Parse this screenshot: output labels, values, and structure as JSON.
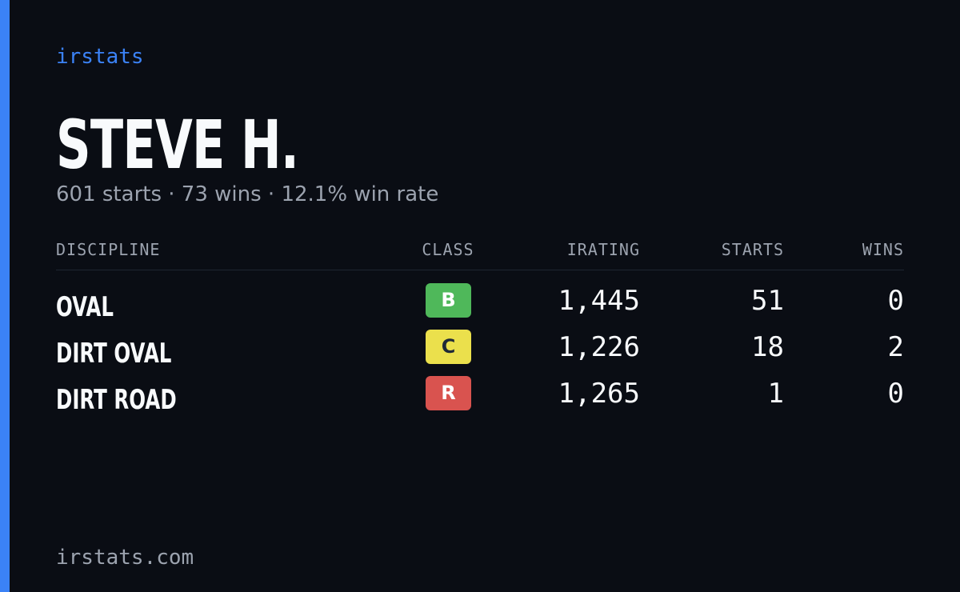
{
  "brand": "irstats",
  "profile": {
    "name": "STEVE H.",
    "summary": "601 starts · 73 wins · 12.1% win rate"
  },
  "table": {
    "headers": [
      "DISCIPLINE",
      "CLASS",
      "IRATING",
      "STARTS",
      "WINS"
    ],
    "rows": [
      {
        "discipline": "OVAL",
        "class": "B",
        "class_color": "#4fb85a",
        "class_text_color": "#ffffff",
        "irating": "1,445",
        "starts": "51",
        "wins": "0"
      },
      {
        "discipline": "DIRT OVAL",
        "class": "C",
        "class_color": "#ebe04c",
        "class_text_color": "#1f2937",
        "irating": "1,226",
        "starts": "18",
        "wins": "2"
      },
      {
        "discipline": "DIRT ROAD",
        "class": "R",
        "class_color": "#d9534f",
        "class_text_color": "#ffffff",
        "irating": "1,265",
        "starts": "1",
        "wins": "0"
      }
    ]
  },
  "footer": "irstats.com"
}
